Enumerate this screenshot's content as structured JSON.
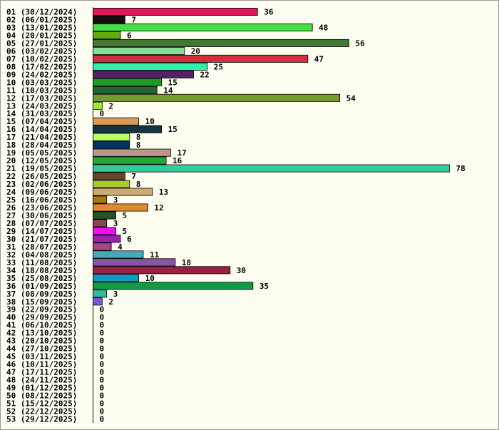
{
  "chart_data": {
    "type": "bar",
    "orientation": "horizontal",
    "title": "",
    "xlabel": "",
    "ylabel": "",
    "grid": false,
    "xlim": [
      0,
      78
    ],
    "categories": [
      "01 (30/12/2024)",
      "02 (06/01/2025)",
      "03 (13/01/2025)",
      "04 (20/01/2025)",
      "05 (27/01/2025)",
      "06 (03/02/2025)",
      "07 (10/02/2025)",
      "08 (17/02/2025)",
      "09 (24/02/2025)",
      "10 (03/03/2025)",
      "11 (10/03/2025)",
      "12 (17/03/2025)",
      "13 (24/03/2025)",
      "14 (31/03/2025)",
      "15 (07/04/2025)",
      "16 (14/04/2025)",
      "17 (21/04/2025)",
      "18 (28/04/2025)",
      "19 (05/05/2025)",
      "20 (12/05/2025)",
      "21 (19/05/2025)",
      "22 (26/05/2025)",
      "23 (02/06/2025)",
      "24 (09/06/2025)",
      "25 (16/06/2025)",
      "26 (23/06/2025)",
      "27 (30/06/2025)",
      "28 (07/07/2025)",
      "29 (14/07/2025)",
      "30 (21/07/2025)",
      "31 (28/07/2025)",
      "32 (04/08/2025)",
      "33 (11/08/2025)",
      "34 (18/08/2025)",
      "35 (25/08/2025)",
      "36 (01/09/2025)",
      "37 (08/09/2025)",
      "38 (15/09/2025)",
      "39 (22/09/2025)",
      "40 (29/09/2025)",
      "41 (06/10/2025)",
      "42 (13/10/2025)",
      "43 (20/10/2025)",
      "44 (27/10/2025)",
      "45 (03/11/2025)",
      "46 (10/11/2025)",
      "47 (17/11/2025)",
      "48 (24/11/2025)",
      "49 (01/12/2025)",
      "50 (08/12/2025)",
      "51 (15/12/2025)",
      "52 (22/12/2025)",
      "53 (29/12/2025)"
    ],
    "values": [
      36,
      7,
      48,
      6,
      56,
      20,
      47,
      25,
      22,
      15,
      14,
      54,
      2,
      0,
      10,
      15,
      8,
      8,
      17,
      16,
      78,
      7,
      8,
      13,
      3,
      12,
      5,
      3,
      5,
      6,
      4,
      11,
      18,
      30,
      10,
      35,
      3,
      2,
      0,
      0,
      0,
      0,
      0,
      0,
      0,
      0,
      0,
      0,
      0,
      0,
      0,
      0,
      0
    ],
    "colors": [
      "#e0185a",
      "#111111",
      "#44dd44",
      "#66aa11",
      "#447733",
      "#88dd99",
      "#d03040",
      "#33eeaa",
      "#552266",
      "#229922",
      "#226633",
      "#779933",
      "#99ee33",
      "#ffffff",
      "#dd9955",
      "#113344",
      "#bbff66",
      "#003366",
      "#bb9988",
      "#22aa33",
      "#33cc99",
      "#664433",
      "#aacc33",
      "#ccaa77",
      "#aa7711",
      "#dd8833",
      "#225522",
      "#884455",
      "#ee11ee",
      "#9922aa",
      "#aa4488",
      "#44aabb",
      "#8855aa",
      "#992244",
      "#1199bb",
      "#119944",
      "#33bb99",
      "#7755dd",
      "#ffffff",
      "#ffffff",
      "#ffffff",
      "#ffffff",
      "#ffffff",
      "#ffffff",
      "#ffffff",
      "#ffffff",
      "#ffffff",
      "#ffffff",
      "#ffffff",
      "#ffffff",
      "#ffffff",
      "#ffffff",
      "#ffffff"
    ]
  }
}
